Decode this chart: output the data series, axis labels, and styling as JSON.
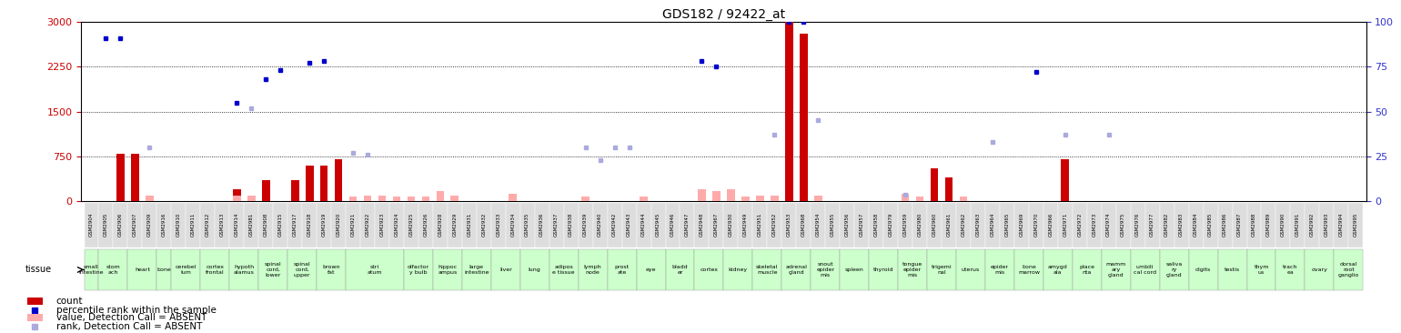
{
  "title": "GDS182 / 92422_at",
  "ylim_left": [
    0,
    3000
  ],
  "ylim_right": [
    0,
    100
  ],
  "yticks_left": [
    0,
    750,
    1500,
    2250,
    3000
  ],
  "yticks_right": [
    0,
    25,
    50,
    75,
    100
  ],
  "left_axis_color": "#cc0000",
  "right_axis_color": "#3333cc",
  "bar_color_present": "#cc0000",
  "bar_color_absent": "#ffaaaa",
  "dot_color_present": "#0000cc",
  "dot_color_absent": "#aaaadd",
  "tissue_bg": "#ccffcc",
  "sample_bg": "#dddddd",
  "samples": [
    {
      "id": "GSM2904",
      "tissue": "small\nintestine",
      "count": null,
      "rank": null,
      "count_absent": null,
      "rank_absent": null
    },
    {
      "id": "GSM2905",
      "tissue": "stom\nach",
      "count": null,
      "rank": 91,
      "count_absent": null,
      "rank_absent": null
    },
    {
      "id": "GSM2906",
      "tissue": "stom\nach",
      "count": 800,
      "rank": 91,
      "count_absent": null,
      "rank_absent": null
    },
    {
      "id": "GSM2907",
      "tissue": "heart",
      "count": 800,
      "rank": null,
      "count_absent": null,
      "rank_absent": null
    },
    {
      "id": "GSM2909",
      "tissue": "heart",
      "count": null,
      "rank": null,
      "count_absent": 100,
      "rank_absent": 30
    },
    {
      "id": "GSM2916",
      "tissue": "bone",
      "count": null,
      "rank": null,
      "count_absent": null,
      "rank_absent": null
    },
    {
      "id": "GSM2910",
      "tissue": "cerebel\nlum",
      "count": null,
      "rank": null,
      "count_absent": null,
      "rank_absent": null
    },
    {
      "id": "GSM2911",
      "tissue": "cerebel\nlum",
      "count": null,
      "rank": null,
      "count_absent": null,
      "rank_absent": null
    },
    {
      "id": "GSM2912",
      "tissue": "cortex\nfrontal",
      "count": null,
      "rank": null,
      "count_absent": null,
      "rank_absent": null
    },
    {
      "id": "GSM2913",
      "tissue": "cortex\nfrontal",
      "count": null,
      "rank": null,
      "count_absent": null,
      "rank_absent": null
    },
    {
      "id": "GSM2914",
      "tissue": "hypoth\nalamus",
      "count": 200,
      "rank": 55,
      "count_absent": 100,
      "rank_absent": null
    },
    {
      "id": "GSM2981",
      "tissue": "hypoth\nalamus",
      "count": null,
      "rank": null,
      "count_absent": 100,
      "rank_absent": 52
    },
    {
      "id": "GSM2908",
      "tissue": "spinal\ncord,\nlower",
      "count": 350,
      "rank": 68,
      "count_absent": null,
      "rank_absent": null
    },
    {
      "id": "GSM2915",
      "tissue": "spinal\ncord,\nlower",
      "count": null,
      "rank": 73,
      "count_absent": null,
      "rank_absent": null
    },
    {
      "id": "GSM2917",
      "tissue": "spinal\ncord,\nupper",
      "count": 350,
      "rank": null,
      "count_absent": null,
      "rank_absent": null
    },
    {
      "id": "GSM2918",
      "tissue": "spinal\ncord,\nupper",
      "count": 600,
      "rank": 77,
      "count_absent": null,
      "rank_absent": null
    },
    {
      "id": "GSM2919",
      "tissue": "brown\nfat",
      "count": 600,
      "rank": 78,
      "count_absent": null,
      "rank_absent": null
    },
    {
      "id": "GSM2920",
      "tissue": "brown\nfat",
      "count": 700,
      "rank": null,
      "count_absent": null,
      "rank_absent": null
    },
    {
      "id": "GSM2921",
      "tissue": "stri\natum",
      "count": null,
      "rank": null,
      "count_absent": 80,
      "rank_absent": 27
    },
    {
      "id": "GSM2922",
      "tissue": "stri\natum",
      "count": null,
      "rank": null,
      "count_absent": 100,
      "rank_absent": 26
    },
    {
      "id": "GSM2923",
      "tissue": "stri\natum",
      "count": null,
      "rank": null,
      "count_absent": 100,
      "rank_absent": null
    },
    {
      "id": "GSM2924",
      "tissue": "stri\natum",
      "count": null,
      "rank": null,
      "count_absent": 80,
      "rank_absent": null
    },
    {
      "id": "GSM2925",
      "tissue": "olfactor\ny bulb",
      "count": null,
      "rank": null,
      "count_absent": 80,
      "rank_absent": null
    },
    {
      "id": "GSM2926",
      "tissue": "olfactor\ny bulb",
      "count": null,
      "rank": null,
      "count_absent": 80,
      "rank_absent": null
    },
    {
      "id": "GSM2928",
      "tissue": "hippoc\nampus",
      "count": null,
      "rank": null,
      "count_absent": 170,
      "rank_absent": null
    },
    {
      "id": "GSM2929",
      "tissue": "hippoc\nampus",
      "count": null,
      "rank": null,
      "count_absent": 100,
      "rank_absent": null
    },
    {
      "id": "GSM2931",
      "tissue": "large\nintestine",
      "count": null,
      "rank": null,
      "count_absent": null,
      "rank_absent": null
    },
    {
      "id": "GSM2932",
      "tissue": "large\nintestine",
      "count": null,
      "rank": null,
      "count_absent": null,
      "rank_absent": null
    },
    {
      "id": "GSM2933",
      "tissue": "liver",
      "count": null,
      "rank": null,
      "count_absent": null,
      "rank_absent": null
    },
    {
      "id": "GSM2934",
      "tissue": "liver",
      "count": null,
      "rank": null,
      "count_absent": 130,
      "rank_absent": null
    },
    {
      "id": "GSM2935",
      "tissue": "lung",
      "count": null,
      "rank": null,
      "count_absent": null,
      "rank_absent": null
    },
    {
      "id": "GSM2936",
      "tissue": "lung",
      "count": null,
      "rank": null,
      "count_absent": null,
      "rank_absent": null
    },
    {
      "id": "GSM2937",
      "tissue": "adipos\ne tissue",
      "count": null,
      "rank": null,
      "count_absent": null,
      "rank_absent": null
    },
    {
      "id": "GSM2938",
      "tissue": "adipos\ne tissue",
      "count": null,
      "rank": null,
      "count_absent": null,
      "rank_absent": null
    },
    {
      "id": "GSM2939",
      "tissue": "lymph\nnode",
      "count": null,
      "rank": null,
      "count_absent": 80,
      "rank_absent": 30
    },
    {
      "id": "GSM2940",
      "tissue": "lymph\nnode",
      "count": null,
      "rank": null,
      "count_absent": null,
      "rank_absent": 23
    },
    {
      "id": "GSM2942",
      "tissue": "prost\nate",
      "count": null,
      "rank": null,
      "count_absent": null,
      "rank_absent": 30
    },
    {
      "id": "GSM2943",
      "tissue": "prost\nate",
      "count": null,
      "rank": null,
      "count_absent": null,
      "rank_absent": 30
    },
    {
      "id": "GSM2944",
      "tissue": "eye",
      "count": null,
      "rank": null,
      "count_absent": 90,
      "rank_absent": null
    },
    {
      "id": "GSM2945",
      "tissue": "eye",
      "count": null,
      "rank": null,
      "count_absent": null,
      "rank_absent": null
    },
    {
      "id": "GSM2946",
      "tissue": "bladd\ner",
      "count": null,
      "rank": null,
      "count_absent": null,
      "rank_absent": null
    },
    {
      "id": "GSM2947",
      "tissue": "bladd\ner",
      "count": null,
      "rank": null,
      "count_absent": null,
      "rank_absent": null
    },
    {
      "id": "GSM2948",
      "tissue": "cortex",
      "count": null,
      "rank": 78,
      "count_absent": 200,
      "rank_absent": null
    },
    {
      "id": "GSM2967",
      "tissue": "cortex",
      "count": null,
      "rank": 75,
      "count_absent": 180,
      "rank_absent": null
    },
    {
      "id": "GSM2930",
      "tissue": "kidney",
      "count": null,
      "rank": null,
      "count_absent": 200,
      "rank_absent": null
    },
    {
      "id": "GSM2949",
      "tissue": "kidney",
      "count": null,
      "rank": null,
      "count_absent": 90,
      "rank_absent": null
    },
    {
      "id": "GSM2951",
      "tissue": "skeletal\nmuscle",
      "count": null,
      "rank": null,
      "count_absent": 100,
      "rank_absent": null
    },
    {
      "id": "GSM2952",
      "tissue": "skeletal\nmuscle",
      "count": null,
      "rank": null,
      "count_absent": 100,
      "rank_absent": 37
    },
    {
      "id": "GSM2953",
      "tissue": "adrenal\ngland",
      "count": 3000,
      "rank": 100,
      "count_absent": null,
      "rank_absent": null
    },
    {
      "id": "GSM2968",
      "tissue": "adrenal\ngland",
      "count": 2800,
      "rank": 100,
      "count_absent": null,
      "rank_absent": null
    },
    {
      "id": "GSM2954",
      "tissue": "snout\nepider\nmis",
      "count": null,
      "rank": null,
      "count_absent": 100,
      "rank_absent": 45
    },
    {
      "id": "GSM2955",
      "tissue": "snout\nepider\nmis",
      "count": null,
      "rank": null,
      "count_absent": null,
      "rank_absent": null
    },
    {
      "id": "GSM2956",
      "tissue": "spleen",
      "count": null,
      "rank": null,
      "count_absent": null,
      "rank_absent": null
    },
    {
      "id": "GSM2957",
      "tissue": "spleen",
      "count": null,
      "rank": null,
      "count_absent": null,
      "rank_absent": null
    },
    {
      "id": "GSM2958",
      "tissue": "thyroid",
      "count": null,
      "rank": null,
      "count_absent": null,
      "rank_absent": null
    },
    {
      "id": "GSM2979",
      "tissue": "thyroid",
      "count": null,
      "rank": null,
      "count_absent": null,
      "rank_absent": null
    },
    {
      "id": "GSM2959",
      "tissue": "tongue\nepider\nmis",
      "count": null,
      "rank": null,
      "count_absent": 130,
      "rank_absent": 4
    },
    {
      "id": "GSM2980",
      "tissue": "tongue\nepider\nmis",
      "count": null,
      "rank": null,
      "count_absent": 80,
      "rank_absent": null
    },
    {
      "id": "GSM2960",
      "tissue": "trigemi\nnal",
      "count": 550,
      "rank": null,
      "count_absent": null,
      "rank_absent": null
    },
    {
      "id": "GSM2961",
      "tissue": "trigemi\nnal",
      "count": 400,
      "rank": null,
      "count_absent": null,
      "rank_absent": null
    },
    {
      "id": "GSM2962",
      "tissue": "uterus",
      "count": null,
      "rank": null,
      "count_absent": 80,
      "rank_absent": null
    },
    {
      "id": "GSM2963",
      "tissue": "uterus",
      "count": null,
      "rank": null,
      "count_absent": null,
      "rank_absent": null
    },
    {
      "id": "GSM2964",
      "tissue": "epider\nmis",
      "count": null,
      "rank": null,
      "count_absent": null,
      "rank_absent": 33
    },
    {
      "id": "GSM2965",
      "tissue": "epider\nmis",
      "count": null,
      "rank": null,
      "count_absent": null,
      "rank_absent": null
    },
    {
      "id": "GSM2969",
      "tissue": "bone\nmarrow",
      "count": null,
      "rank": null,
      "count_absent": null,
      "rank_absent": null
    },
    {
      "id": "GSM2970",
      "tissue": "bone\nmarrow",
      "count": null,
      "rank": 72,
      "count_absent": null,
      "rank_absent": null
    },
    {
      "id": "GSM2966",
      "tissue": "amygd\nala",
      "count": null,
      "rank": null,
      "count_absent": null,
      "rank_absent": null
    },
    {
      "id": "GSM2971",
      "tissue": "amygd\nala",
      "count": 700,
      "rank": null,
      "count_absent": null,
      "rank_absent": 37
    },
    {
      "id": "GSM2972",
      "tissue": "place\nnta",
      "count": null,
      "rank": null,
      "count_absent": null,
      "rank_absent": null
    },
    {
      "id": "GSM2973",
      "tissue": "place\nnta",
      "count": null,
      "rank": null,
      "count_absent": null,
      "rank_absent": null
    },
    {
      "id": "GSM2974",
      "tissue": "mamm\nary\ngland",
      "count": null,
      "rank": null,
      "count_absent": null,
      "rank_absent": 37
    },
    {
      "id": "GSM2975",
      "tissue": "mamm\nary\ngland",
      "count": null,
      "rank": null,
      "count_absent": null,
      "rank_absent": null
    },
    {
      "id": "GSM2976",
      "tissue": "umbili\ncal cord",
      "count": null,
      "rank": null,
      "count_absent": null,
      "rank_absent": null
    },
    {
      "id": "GSM2977",
      "tissue": "umbili\ncal cord",
      "count": null,
      "rank": null,
      "count_absent": null,
      "rank_absent": null
    },
    {
      "id": "GSM2982",
      "tissue": "saliva\nry\ngland",
      "count": null,
      "rank": null,
      "count_absent": null,
      "rank_absent": null
    },
    {
      "id": "GSM2983",
      "tissue": "saliva\nry\ngland",
      "count": null,
      "rank": null,
      "count_absent": null,
      "rank_absent": null
    },
    {
      "id": "GSM2984",
      "tissue": "digits",
      "count": null,
      "rank": null,
      "count_absent": null,
      "rank_absent": null
    },
    {
      "id": "GSM2985",
      "tissue": "digits",
      "count": null,
      "rank": null,
      "count_absent": null,
      "rank_absent": null
    },
    {
      "id": "GSM2986",
      "tissue": "testis",
      "count": null,
      "rank": null,
      "count_absent": null,
      "rank_absent": null
    },
    {
      "id": "GSM2987",
      "tissue": "testis",
      "count": null,
      "rank": null,
      "count_absent": null,
      "rank_absent": null
    },
    {
      "id": "GSM2988",
      "tissue": "thym\nus",
      "count": null,
      "rank": null,
      "count_absent": null,
      "rank_absent": null
    },
    {
      "id": "GSM2989",
      "tissue": "thym\nus",
      "count": null,
      "rank": null,
      "count_absent": null,
      "rank_absent": null
    },
    {
      "id": "GSM2990",
      "tissue": "trach\nea",
      "count": null,
      "rank": null,
      "count_absent": null,
      "rank_absent": null
    },
    {
      "id": "GSM2991",
      "tissue": "trach\nea",
      "count": null,
      "rank": null,
      "count_absent": null,
      "rank_absent": null
    },
    {
      "id": "GSM2992",
      "tissue": "ovary",
      "count": null,
      "rank": null,
      "count_absent": null,
      "rank_absent": null
    },
    {
      "id": "GSM2993",
      "tissue": "ovary",
      "count": null,
      "rank": null,
      "count_absent": null,
      "rank_absent": null
    },
    {
      "id": "GSM2994",
      "tissue": "dorsal\nroot\nganglio",
      "count": null,
      "rank": null,
      "count_absent": null,
      "rank_absent": null
    },
    {
      "id": "GSM2995",
      "tissue": "dorsal\nroot\nganglio",
      "count": null,
      "rank": null,
      "count_absent": null,
      "rank_absent": null
    }
  ],
  "legend_count": "count",
  "legend_rank": "percentile rank within the sample",
  "legend_count_absent": "value, Detection Call = ABSENT",
  "legend_rank_absent": "rank, Detection Call = ABSENT"
}
